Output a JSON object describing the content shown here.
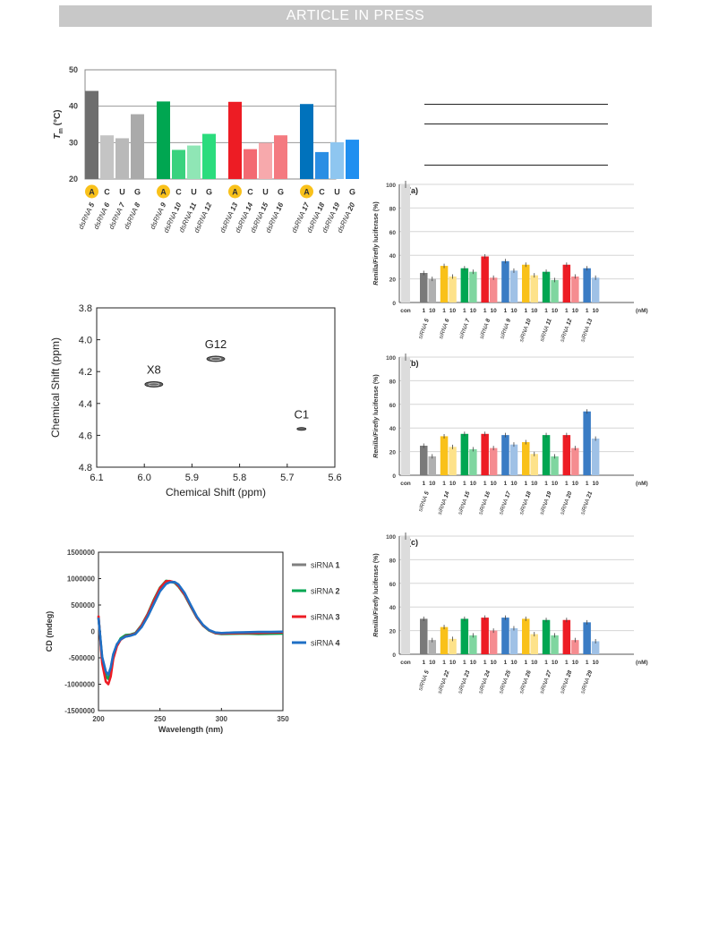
{
  "header": {
    "banner": "ARTICLE IN PRESS"
  },
  "chart_data": [
    {
      "type": "bar",
      "ylabel": "T",
      "ylabel_sub": "m",
      "ylabel_unit": "(°C)",
      "ylim": [
        20,
        50
      ],
      "yticks": [
        20,
        30,
        40,
        50
      ],
      "grid": true,
      "groups": [
        {
          "color": "#7a7a7a",
          "letters": [
            "A",
            "C",
            "U",
            "G"
          ],
          "labels": [
            "dsRNA 5",
            "dsRNA 6",
            "dsRNA 7",
            "dsRNA 8"
          ],
          "values": [
            44.2,
            32.0,
            31.2,
            37.8
          ],
          "fills": [
            "#6e6e6e",
            "#c4c4c4",
            "#b9b9b9",
            "#aaaaaa"
          ]
        },
        {
          "color": "#00a651",
          "letters": [
            "A",
            "C",
            "U",
            "G"
          ],
          "labels": [
            "dsRNA 9",
            "dsRNA 10",
            "dsRNA 11",
            "dsRNA 12"
          ],
          "values": [
            41.3,
            28.0,
            29.2,
            32.4
          ],
          "fills": [
            "#00a651",
            "#39d27e",
            "#8fe6b5",
            "#2bdc7d"
          ]
        },
        {
          "color": "#ed1c24",
          "letters": [
            "A",
            "C",
            "U",
            "G"
          ],
          "labels": [
            "dsRNA 13",
            "dsRNA 14",
            "dsRNA 15",
            "dsRNA 16"
          ],
          "values": [
            41.2,
            28.2,
            29.9,
            32.0
          ],
          "fills": [
            "#ed1c24",
            "#f36a72",
            "#f7a9ac",
            "#f47a80"
          ]
        },
        {
          "color": "#0072bc",
          "letters": [
            "A",
            "C",
            "U",
            "G"
          ],
          "labels": [
            "dsRNA 17",
            "dsRNA 18",
            "dsRNA 19",
            "dsRNA 20"
          ],
          "values": [
            40.6,
            27.4,
            30.1,
            30.8
          ],
          "fills": [
            "#0072bc",
            "#2a8ee4",
            "#8ec6f0",
            "#1f8ff0"
          ]
        }
      ],
      "highlight_color": "#f9c11a"
    },
    {
      "type": "scatter",
      "xlabel": "Chemical Shift (ppm)",
      "ylabel": "Chemical Shift (ppm)",
      "xlim": [
        6.1,
        5.6
      ],
      "ylim": [
        3.8,
        4.8
      ],
      "xticks": [
        "6.1",
        "6.0",
        "5.9",
        "5.8",
        "5.7",
        "5.6"
      ],
      "yticks": [
        "3.8",
        "4.0",
        "4.2",
        "4.4",
        "4.6",
        "4.8"
      ],
      "peaks": [
        {
          "label": "X8",
          "x": 5.98,
          "y": 4.28
        },
        {
          "label": "G12",
          "x": 5.85,
          "y": 4.12
        },
        {
          "label": "C1",
          "x": 5.67,
          "y": 4.56
        }
      ]
    },
    {
      "type": "line",
      "xlabel": "Wavelength (nm)",
      "ylabel": "CD (mdeg)",
      "xlim": [
        200,
        350
      ],
      "ylim": [
        -1500000,
        1500000
      ],
      "xticks": [
        200,
        250,
        300,
        350
      ],
      "yticks": [
        "1500000",
        "1000000",
        "500000",
        "0",
        "-500000",
        "-1000000",
        "-1500000"
      ],
      "x": [
        200,
        203,
        206,
        208,
        210,
        212,
        215,
        218,
        222,
        226,
        230,
        235,
        240,
        245,
        250,
        255,
        258,
        262,
        265,
        270,
        275,
        280,
        285,
        290,
        295,
        300,
        310,
        320,
        330,
        340,
        350
      ],
      "series": [
        {
          "name_prefix": "siRNA ",
          "name_num": "1",
          "color": "#7f7f7f",
          "values": [
            250000,
            -500000,
            -800000,
            -850000,
            -700000,
            -450000,
            -250000,
            -150000,
            -100000,
            -80000,
            -40000,
            100000,
            300000,
            550000,
            800000,
            930000,
            940000,
            920000,
            860000,
            700000,
            480000,
            270000,
            120000,
            20000,
            -30000,
            -40000,
            -30000,
            -20000,
            -20000,
            -15000,
            -10000
          ]
        },
        {
          "name_prefix": "siRNA ",
          "name_num": "2",
          "color": "#00a651",
          "values": [
            280000,
            -550000,
            -850000,
            -900000,
            -750000,
            -480000,
            -260000,
            -130000,
            -70000,
            -60000,
            -30000,
            120000,
            330000,
            600000,
            830000,
            960000,
            950000,
            920000,
            850000,
            690000,
            470000,
            260000,
            110000,
            15000,
            -35000,
            -50000,
            -45000,
            -40000,
            -50000,
            -45000,
            -40000
          ]
        },
        {
          "name_prefix": "siRNA ",
          "name_num": "3",
          "color": "#ed1c24",
          "values": [
            300000,
            -600000,
            -950000,
            -1000000,
            -850000,
            -520000,
            -280000,
            -160000,
            -90000,
            -70000,
            -40000,
            110000,
            320000,
            580000,
            820000,
            950000,
            955000,
            930000,
            860000,
            700000,
            480000,
            265000,
            115000,
            20000,
            -30000,
            -40000,
            -35000,
            -30000,
            -30000,
            -25000,
            -20000
          ]
        },
        {
          "name_prefix": "siRNA ",
          "name_num": "4",
          "color": "#1f6fc5",
          "values": [
            260000,
            -480000,
            -760000,
            -820000,
            -680000,
            -430000,
            -240000,
            -150000,
            -100000,
            -80000,
            -50000,
            80000,
            280000,
            520000,
            760000,
            900000,
            930000,
            935000,
            890000,
            730000,
            500000,
            280000,
            125000,
            25000,
            -20000,
            -30000,
            -20000,
            -15000,
            -10000,
            -10000,
            -5000
          ]
        }
      ]
    },
    {
      "type": "bar",
      "panel": "(a)",
      "ylabel_italic": "Renilla/Firefly",
      "ylabel_rest": " luciferase (%)",
      "ylim": [
        0,
        100
      ],
      "yticks": [
        0,
        20,
        40,
        60,
        80,
        100
      ],
      "unit": "(nM)",
      "con_label": "con",
      "con_value": 100,
      "dose_labels": [
        "1",
        "10"
      ],
      "groups": [
        {
          "label": "siRNA 5",
          "color": "#7a7a7a",
          "light": "#b0b0b0",
          "values": [
            25.0,
            20.0
          ]
        },
        {
          "label": "siRNA 6",
          "color": "#f9c11a",
          "light": "#fde28a",
          "values": [
            31.0,
            22.0
          ]
        },
        {
          "label": "siRNA 7",
          "color": "#00a651",
          "light": "#7fd6a0",
          "values": [
            29.0,
            26.0
          ]
        },
        {
          "label": "siRNA 8",
          "color": "#ed1c24",
          "light": "#f58c90",
          "values": [
            39.0,
            21.0
          ]
        },
        {
          "label": "siRNA 9",
          "color": "#3a7cc4",
          "light": "#9fc1e6",
          "values": [
            35.0,
            27.0
          ]
        },
        {
          "label": "siRNA 10",
          "color": "#f9c11a",
          "light": "#fde28a",
          "values": [
            32.0,
            23.0
          ]
        },
        {
          "label": "siRNA 11",
          "color": "#00a651",
          "light": "#7fd6a0",
          "values": [
            26.0,
            19.0
          ]
        },
        {
          "label": "siRNA 12",
          "color": "#ed1c24",
          "light": "#f58c90",
          "values": [
            32.0,
            22.0
          ]
        },
        {
          "label": "siRNA 13",
          "color": "#3a7cc4",
          "light": "#9fc1e6",
          "values": [
            29.0,
            21.0
          ]
        }
      ]
    },
    {
      "type": "bar",
      "panel": "(b)",
      "ylabel_italic": "Renilla/Firefly",
      "ylabel_rest": " luciferase (%)",
      "ylim": [
        0,
        100
      ],
      "yticks": [
        0,
        20,
        40,
        60,
        80,
        100
      ],
      "unit": "(nM)",
      "con_label": "con",
      "con_value": 100,
      "dose_labels": [
        "1",
        "10"
      ],
      "groups": [
        {
          "label": "siRNA 5",
          "color": "#7a7a7a",
          "light": "#b0b0b0",
          "values": [
            25.0,
            16.0
          ]
        },
        {
          "label": "siRNA 14",
          "color": "#f9c11a",
          "light": "#fde28a",
          "values": [
            33.0,
            24.0
          ]
        },
        {
          "label": "siRNA 15",
          "color": "#00a651",
          "light": "#7fd6a0",
          "values": [
            35.0,
            22.0
          ]
        },
        {
          "label": "siRNA 16",
          "color": "#ed1c24",
          "light": "#f58c90",
          "values": [
            35.0,
            23.0
          ]
        },
        {
          "label": "siRNA 17",
          "color": "#3a7cc4",
          "light": "#9fc1e6",
          "values": [
            34.0,
            26.0
          ]
        },
        {
          "label": "siRNA 18",
          "color": "#f9c11a",
          "light": "#fde28a",
          "values": [
            28.0,
            18.0
          ]
        },
        {
          "label": "siRNA 19",
          "color": "#00a651",
          "light": "#7fd6a0",
          "values": [
            34.0,
            16.0
          ]
        },
        {
          "label": "siRNA 20",
          "color": "#ed1c24",
          "light": "#f58c90",
          "values": [
            34.0,
            23.0
          ]
        },
        {
          "label": "siRNA 21",
          "color": "#3a7cc4",
          "light": "#9fc1e6",
          "values": [
            54.0,
            31.0
          ]
        }
      ]
    },
    {
      "type": "bar",
      "panel": "(c)",
      "ylabel_italic": "Renilla/Firefly",
      "ylabel_rest": " luciferase (%)",
      "ylim": [
        0,
        100
      ],
      "yticks": [
        0,
        20,
        40,
        60,
        80,
        100
      ],
      "unit": "(nM)",
      "con_label": "con",
      "con_value": 100,
      "dose_labels": [
        "1",
        "10"
      ],
      "groups": [
        {
          "label": "siRNA 5",
          "color": "#7a7a7a",
          "light": "#b0b0b0",
          "values": [
            30.0,
            12.0
          ]
        },
        {
          "label": "siRNA 22",
          "color": "#f9c11a",
          "light": "#fde28a",
          "values": [
            23.0,
            13.0
          ]
        },
        {
          "label": "siRNA 23",
          "color": "#00a651",
          "light": "#7fd6a0",
          "values": [
            30.0,
            16.0
          ]
        },
        {
          "label": "siRNA 24",
          "color": "#ed1c24",
          "light": "#f58c90",
          "values": [
            31.0,
            20.0
          ]
        },
        {
          "label": "siRNA 25",
          "color": "#3a7cc4",
          "light": "#9fc1e6",
          "values": [
            31.0,
            22.0
          ]
        },
        {
          "label": "siRNA 26",
          "color": "#f9c11a",
          "light": "#fde28a",
          "values": [
            30.0,
            17.0
          ]
        },
        {
          "label": "siRNA 27",
          "color": "#00a651",
          "light": "#7fd6a0",
          "values": [
            29.0,
            16.0
          ]
        },
        {
          "label": "siRNA 28",
          "color": "#ed1c24",
          "light": "#f58c90",
          "values": [
            29.0,
            12.0
          ]
        },
        {
          "label": "siRNA 29",
          "color": "#3a7cc4",
          "light": "#9fc1e6",
          "values": [
            27.0,
            11.0
          ]
        }
      ]
    }
  ]
}
